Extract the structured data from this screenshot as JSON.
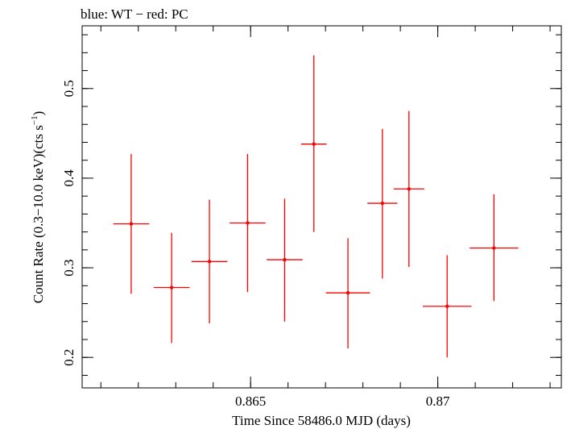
{
  "chart_data": {
    "type": "scatter",
    "title": "blue: WT − red: PC",
    "xlabel": "Time Since 58486.0 MJD (days)",
    "ylabel": "Count Rate (0.3−10.0 keV)(cts s",
    "ylabel_sup": "−1",
    "ylabel_tail": ")",
    "xlim": [
      0.8605,
      0.8733
    ],
    "ylim": [
      0.166,
      0.57
    ],
    "x_ticks": [
      {
        "value": 0.865,
        "label": "0.865"
      },
      {
        "value": 0.87,
        "label": "0.87"
      }
    ],
    "y_ticks": [
      {
        "value": 0.2,
        "label": "0.2"
      },
      {
        "value": 0.3,
        "label": "0.3"
      },
      {
        "value": 0.4,
        "label": "0.4"
      },
      {
        "value": 0.5,
        "label": "0.5"
      }
    ],
    "x_minor_step": 0.001,
    "y_minor_step": 0.02,
    "grid": false,
    "colors": {
      "PC": "#ff0000",
      "WT": "#0000ff",
      "axes": "#000000"
    },
    "series": [
      {
        "mode": "PC",
        "color": "#ff0000",
        "points": [
          {
            "x": 0.86181,
            "xerr": 0.00048,
            "y": 0.349,
            "yerr_low": 0.078,
            "yerr_high": 0.078
          },
          {
            "x": 0.86289,
            "xerr": 0.00048,
            "y": 0.278,
            "yerr_low": 0.062,
            "yerr_high": 0.061
          },
          {
            "x": 0.8639,
            "xerr": 0.00048,
            "y": 0.307,
            "yerr_low": 0.069,
            "yerr_high": 0.069
          },
          {
            "x": 0.86492,
            "xerr": 0.00048,
            "y": 0.35,
            "yerr_low": 0.077,
            "yerr_high": 0.077
          },
          {
            "x": 0.86591,
            "xerr": 0.00048,
            "y": 0.309,
            "yerr_low": 0.069,
            "yerr_high": 0.068
          },
          {
            "x": 0.86669,
            "xerr": 0.00034,
            "y": 0.438,
            "yerr_low": 0.098,
            "yerr_high": 0.099
          },
          {
            "x": 0.8676,
            "xerr": 0.00059,
            "y": 0.272,
            "yerr_low": 0.062,
            "yerr_high": 0.061
          },
          {
            "x": 0.86852,
            "xerr": 0.0004,
            "y": 0.372,
            "yerr_low": 0.084,
            "yerr_high": 0.083
          },
          {
            "x": 0.86923,
            "xerr": 0.00041,
            "y": 0.388,
            "yerr_low": 0.087,
            "yerr_high": 0.087
          },
          {
            "x": 0.87025,
            "xerr": 0.00065,
            "y": 0.257,
            "yerr_low": 0.057,
            "yerr_high": 0.057
          },
          {
            "x": 0.8715,
            "xerr": 0.00065,
            "y": 0.322,
            "yerr_low": 0.059,
            "yerr_high": 0.06
          }
        ]
      }
    ]
  }
}
